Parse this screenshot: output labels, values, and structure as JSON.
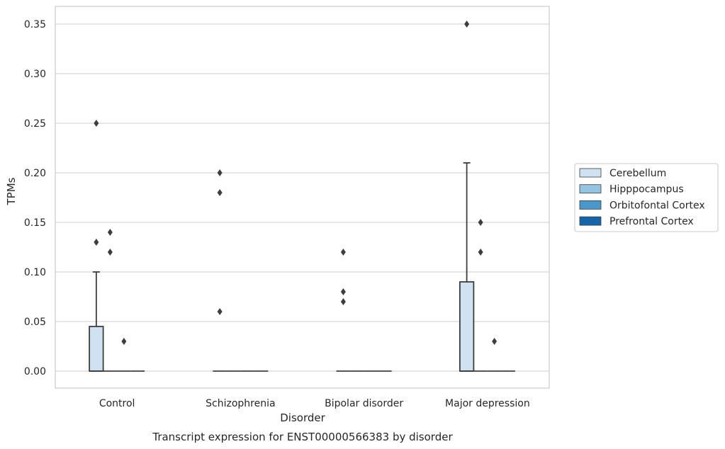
{
  "chart_data": {
    "type": "box",
    "caption": "Transcript expression for ENST00000566383 by disorder",
    "xlabel": "Disorder",
    "ylabel": "TPMs",
    "ylim": [
      -0.017,
      0.367
    ],
    "yticks": [
      0.0,
      0.05,
      0.1,
      0.15,
      0.2,
      0.25,
      0.3,
      0.35
    ],
    "ytick_labels": [
      "0.00",
      "0.05",
      "0.10",
      "0.15",
      "0.20",
      "0.25",
      "0.30",
      "0.35"
    ],
    "grid": "horizontal",
    "legend_position": "right",
    "categories": [
      "Control",
      "Schizophrenia",
      "Bipolar disorder",
      "Major depression"
    ],
    "series": [
      {
        "name": "Cerebellum",
        "color": "#d0e1f2",
        "boxes": [
          {
            "q1": 0.0,
            "median": 0.0,
            "q3": 0.045,
            "whisker_low": 0.0,
            "whisker_high": 0.1,
            "outliers": [
              0.13,
              0.25
            ]
          },
          {
            "q1": 0.0,
            "median": 0.0,
            "q3": 0.0,
            "whisker_low": 0.0,
            "whisker_high": 0.0,
            "outliers": [
              0.06,
              0.18,
              0.2
            ]
          },
          {
            "q1": 0.0,
            "median": 0.0,
            "q3": 0.0,
            "whisker_low": 0.0,
            "whisker_high": 0.0,
            "outliers": [
              0.07,
              0.08,
              0.12
            ]
          },
          {
            "q1": 0.0,
            "median": 0.0,
            "q3": 0.09,
            "whisker_low": 0.0,
            "whisker_high": 0.21,
            "outliers": [
              0.35
            ]
          }
        ]
      },
      {
        "name": "Hipppocampus",
        "color": "#94c4df",
        "boxes": [
          {
            "q1": 0.0,
            "median": 0.0,
            "q3": 0.0,
            "whisker_low": 0.0,
            "whisker_high": 0.0,
            "outliers": [
              0.12,
              0.14
            ]
          },
          {
            "q1": 0.0,
            "median": 0.0,
            "q3": 0.0,
            "whisker_low": 0.0,
            "whisker_high": 0.0,
            "outliers": []
          },
          {
            "q1": 0.0,
            "median": 0.0,
            "q3": 0.0,
            "whisker_low": 0.0,
            "whisker_high": 0.0,
            "outliers": []
          },
          {
            "q1": 0.0,
            "median": 0.0,
            "q3": 0.0,
            "whisker_low": 0.0,
            "whisker_high": 0.0,
            "outliers": [
              0.12,
              0.15
            ]
          }
        ]
      },
      {
        "name": "Orbitofontal Cortex",
        "color": "#4a98c9",
        "boxes": [
          {
            "q1": 0.0,
            "median": 0.0,
            "q3": 0.0,
            "whisker_low": 0.0,
            "whisker_high": 0.0,
            "outliers": [
              0.03
            ]
          },
          {
            "q1": 0.0,
            "median": 0.0,
            "q3": 0.0,
            "whisker_low": 0.0,
            "whisker_high": 0.0,
            "outliers": []
          },
          {
            "q1": 0.0,
            "median": 0.0,
            "q3": 0.0,
            "whisker_low": 0.0,
            "whisker_high": 0.0,
            "outliers": []
          },
          {
            "q1": 0.0,
            "median": 0.0,
            "q3": 0.0,
            "whisker_low": 0.0,
            "whisker_high": 0.0,
            "outliers": [
              0.03
            ]
          }
        ]
      },
      {
        "name": "Prefrontal Cortex",
        "color": "#1764ab",
        "boxes": [
          {
            "q1": 0.0,
            "median": 0.0,
            "q3": 0.0,
            "whisker_low": 0.0,
            "whisker_high": 0.0,
            "outliers": []
          },
          {
            "q1": 0.0,
            "median": 0.0,
            "q3": 0.0,
            "whisker_low": 0.0,
            "whisker_high": 0.0,
            "outliers": []
          },
          {
            "q1": 0.0,
            "median": 0.0,
            "q3": 0.0,
            "whisker_low": 0.0,
            "whisker_high": 0.0,
            "outliers": []
          },
          {
            "q1": 0.0,
            "median": 0.0,
            "q3": 0.0,
            "whisker_low": 0.0,
            "whisker_high": 0.0,
            "outliers": []
          }
        ]
      }
    ]
  }
}
